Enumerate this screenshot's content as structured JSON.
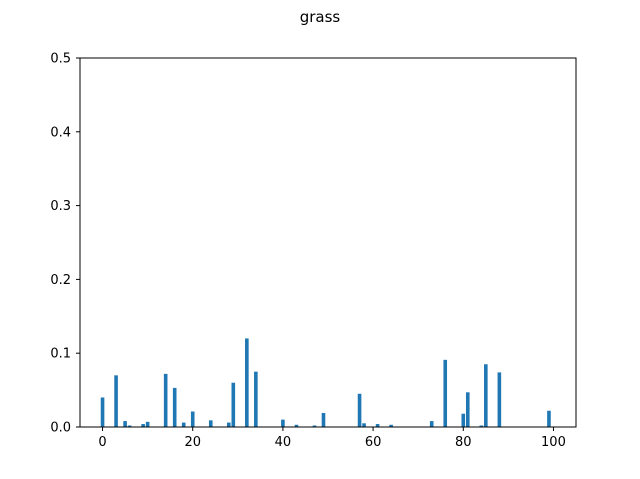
{
  "chart_data": {
    "type": "bar",
    "title": "grass",
    "xlabel": "",
    "ylabel": "",
    "xlim": [
      -5,
      105
    ],
    "ylim": [
      0,
      0.5
    ],
    "xticks": [
      0,
      20,
      40,
      60,
      80,
      100
    ],
    "xtick_labels": [
      "0",
      "20",
      "40",
      "60",
      "80",
      "100"
    ],
    "yticks": [
      0.0,
      0.1,
      0.2,
      0.3,
      0.4,
      0.5
    ],
    "ytick_labels": [
      "0.0",
      "0.1",
      "0.2",
      "0.3",
      "0.4",
      "0.5"
    ],
    "grid": false,
    "bar_color": "#1f77b4",
    "x": [
      0,
      3,
      5,
      6,
      9,
      10,
      14,
      16,
      18,
      20,
      24,
      28,
      29,
      32,
      34,
      40,
      43,
      47,
      49,
      57,
      58,
      61,
      64,
      73,
      76,
      80,
      81,
      84,
      85,
      88,
      99
    ],
    "values": [
      0.04,
      0.07,
      0.008,
      0.002,
      0.004,
      0.007,
      0.072,
      0.053,
      0.006,
      0.021,
      0.009,
      0.006,
      0.06,
      0.12,
      0.075,
      0.01,
      0.003,
      0.002,
      0.019,
      0.045,
      0.005,
      0.004,
      0.003,
      0.008,
      0.091,
      0.018,
      0.047,
      0.002,
      0.085,
      0.074,
      0.022
    ]
  }
}
